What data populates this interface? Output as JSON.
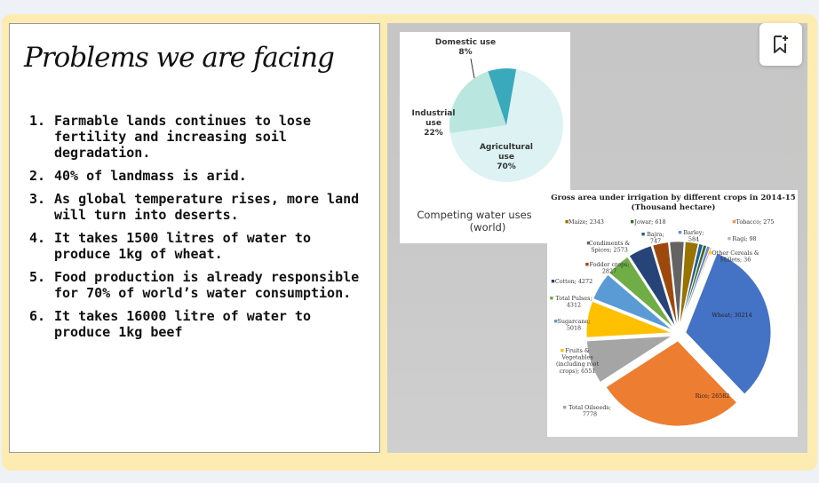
{
  "slide": {
    "title": "Problems we are facing",
    "problems": [
      {
        "num": "1.",
        "text": "Farmable lands continues to lose fertility and increasing soil degradation."
      },
      {
        "num": "2.",
        "text": "40% of landmass is arid."
      },
      {
        "num": "3.",
        "text": "As global temperature rises, more land will turn into deserts."
      },
      {
        "num": "4.",
        "text": "It takes 1500 litres of water to produce 1kg of wheat."
      },
      {
        "num": "5.",
        "text": "Food production is already responsible for 70% of world’s water consumption."
      },
      {
        "num": "6.",
        "text": "It takes 16000 litre of water to produce 1kg beef"
      }
    ]
  },
  "toolbar": {
    "bookmark_icon": "bookmark-add-icon"
  },
  "chart_data": [
    {
      "type": "pie",
      "title": "Competing water uses",
      "subtitle": "(world)",
      "slices": [
        {
          "name": "Domestic use",
          "value": 8,
          "label": "8%",
          "color": "#3aa9bb"
        },
        {
          "name": "Industrial use",
          "value": 22,
          "label": "22%",
          "color": "#b9e6df"
        },
        {
          "name": "Agricultural use",
          "value": 70,
          "label": "70%",
          "color": "#ddf3f3"
        }
      ]
    },
    {
      "type": "pie",
      "title": "Gross area under irrigation by different crops in 2014-15",
      "subtitle": "(Thousand hectare)",
      "slices": [
        {
          "name": "Wheat",
          "value": 30214,
          "label": "Wheat; 30214",
          "color": "#4472c4"
        },
        {
          "name": "Rice",
          "value": 26582,
          "label": "Rice; 26582",
          "color": "#ed7d31"
        },
        {
          "name": "Total Oilseeds",
          "value": 7778,
          "label": "Total Oilseeds; 7778",
          "color": "#a5a5a5"
        },
        {
          "name": "Fruits & Vegetables (including root crops)",
          "value": 6551,
          "label": "Fruits & Vegetables (including root crops); 6551",
          "color": "#ffc000"
        },
        {
          "name": "Sugarcane",
          "value": 5018,
          "label": "Sugarcane; 5018",
          "color": "#5b9bd5"
        },
        {
          "name": "Total Pulses",
          "value": 4312,
          "label": "Total Pulses; 4312",
          "color": "#70ad47"
        },
        {
          "name": "Cotton",
          "value": 4272,
          "label": "Cotton; 4272",
          "color": "#264478"
        },
        {
          "name": "Fodder crops",
          "value": 2827,
          "label": "Fodder crops; 2827",
          "color": "#9e480e"
        },
        {
          "name": "Condiments & Spices",
          "value": 2573,
          "label": "Condiments & Spices; 2573",
          "color": "#636363"
        },
        {
          "name": "Maize",
          "value": 2343,
          "label": "Maize; 2343",
          "color": "#997300"
        },
        {
          "name": "Bajra",
          "value": 747,
          "label": "Bajra; 747",
          "color": "#255e91"
        },
        {
          "name": "Jowar",
          "value": 618,
          "label": "Jowar; 618",
          "color": "#43682b"
        },
        {
          "name": "Barley",
          "value": 584,
          "label": "Barley; 584",
          "color": "#698ed0"
        },
        {
          "name": "Tobacco",
          "value": 275,
          "label": "Tobacco; 275",
          "color": "#f1975a"
        },
        {
          "name": "Ragi",
          "value": 98,
          "label": "Ragi; 98",
          "color": "#b7b7b7"
        },
        {
          "name": "Other Cereals & Millets",
          "value": 36,
          "label": "Other Cereals & Millets; 36",
          "color": "#ffcd33"
        }
      ]
    }
  ]
}
